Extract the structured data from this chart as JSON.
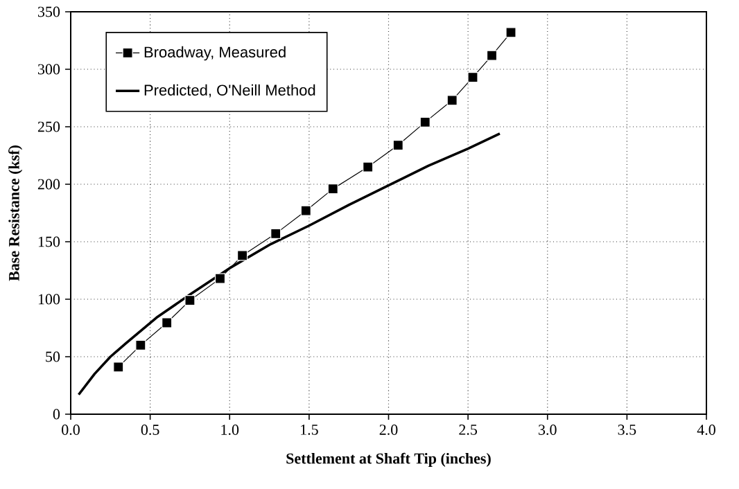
{
  "chart_data": {
    "type": "line",
    "xlabel": "Settlement at Shaft Tip (inches)",
    "ylabel": "Base Resistance (ksf)",
    "xlim": [
      0,
      4
    ],
    "ylim": [
      0,
      350
    ],
    "xticks": [
      {
        "value": 0,
        "label": "0.0"
      },
      {
        "value": 0.5,
        "label": "0.5"
      },
      {
        "value": 1,
        "label": "1.0"
      },
      {
        "value": 1.5,
        "label": "1.5"
      },
      {
        "value": 2,
        "label": "2.0"
      },
      {
        "value": 2.5,
        "label": "2.5"
      },
      {
        "value": 3,
        "label": "3.0"
      },
      {
        "value": 3.5,
        "label": "3.5"
      },
      {
        "value": 4,
        "label": "4.0"
      }
    ],
    "yticks": [
      0,
      50,
      100,
      150,
      200,
      250,
      300,
      350
    ],
    "grid": true,
    "legend": "top left",
    "series": [
      {
        "name": "Broadway, Measured",
        "color": "#000000",
        "marker": "square",
        "x": [
          0.3,
          0.44,
          0.605,
          0.75,
          0.94,
          1.08,
          1.29,
          1.48,
          1.65,
          1.87,
          2.06,
          2.23,
          2.4,
          2.53,
          2.65,
          2.77
        ],
        "values": [
          41,
          60,
          79.5,
          99,
          118,
          138,
          157,
          177,
          196,
          215,
          234,
          254,
          273,
          293,
          312,
          332
        ]
      },
      {
        "name": "Predicted, O'Neill Method",
        "color": "#000000",
        "marker": "none",
        "x": [
          0.05,
          0.15,
          0.25,
          0.35,
          0.54,
          0.75,
          1.0,
          1.26,
          1.5,
          1.75,
          2.0,
          2.25,
          2.5,
          2.7
        ],
        "values": [
          17,
          35,
          50,
          62,
          84,
          104,
          127,
          148,
          164,
          182,
          199,
          216,
          231,
          244
        ]
      }
    ]
  }
}
